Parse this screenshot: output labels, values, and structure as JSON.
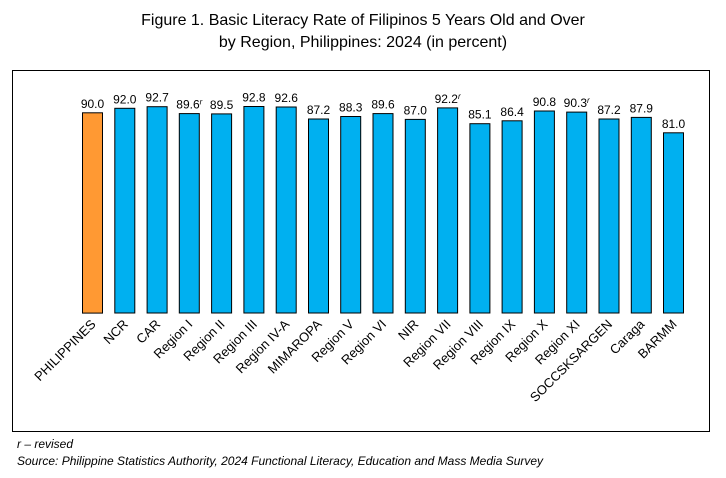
{
  "title_lines": [
    "Figure 1.  Basic Literacy Rate of Filipinos 5 Years Old and Over",
    "by Region, Philippines: 2024 (in percent)"
  ],
  "footnotes": {
    "revised": "r – revised",
    "source": "Source: Philippine Statistics Authority, 2024 Functional Literacy, Education and Mass Media Survey"
  },
  "colors": {
    "highlight": "#FF9933",
    "bar": "#00B0F0",
    "outline": "#000000"
  },
  "chart_data": {
    "type": "bar",
    "title": "Figure 1.  Basic Literacy Rate of Filipinos 5 Years Old and Over by Region, Philippines: 2024 (in percent)",
    "xlabel": "",
    "ylabel": "",
    "grid": false,
    "legend": "none",
    "categories": [
      "PHILIPPINES",
      "NCR",
      "CAR",
      "Region I",
      "Region II",
      "Region III",
      "Region IV-A",
      "MIMAROPA",
      "Region V",
      "Region VI",
      "NIR",
      "Region VII",
      "Region VIII",
      "Region IX",
      "Region X",
      "Region XI",
      "SOCCSKSARGEN",
      "Caraga",
      "BARMM"
    ],
    "values": [
      90.0,
      92.0,
      92.7,
      89.6,
      89.5,
      92.8,
      92.6,
      87.2,
      88.3,
      89.6,
      87.0,
      92.2,
      85.1,
      86.4,
      90.8,
      90.3,
      87.2,
      87.9,
      81.0
    ],
    "value_labels": [
      "90.0",
      "92.0",
      "92.7",
      "89.6",
      "89.5",
      "92.8",
      "92.6",
      "87.2",
      "88.3",
      "89.6",
      "87.0",
      "92.2",
      "85.1",
      "86.4",
      "90.8",
      "90.3",
      "87.2",
      "87.9",
      "81.0"
    ],
    "revised": [
      false,
      false,
      false,
      true,
      false,
      false,
      false,
      false,
      false,
      false,
      false,
      true,
      false,
      false,
      false,
      true,
      false,
      false,
      false
    ],
    "revised_mark": "r",
    "highlight": "PHILIPPINES"
  }
}
